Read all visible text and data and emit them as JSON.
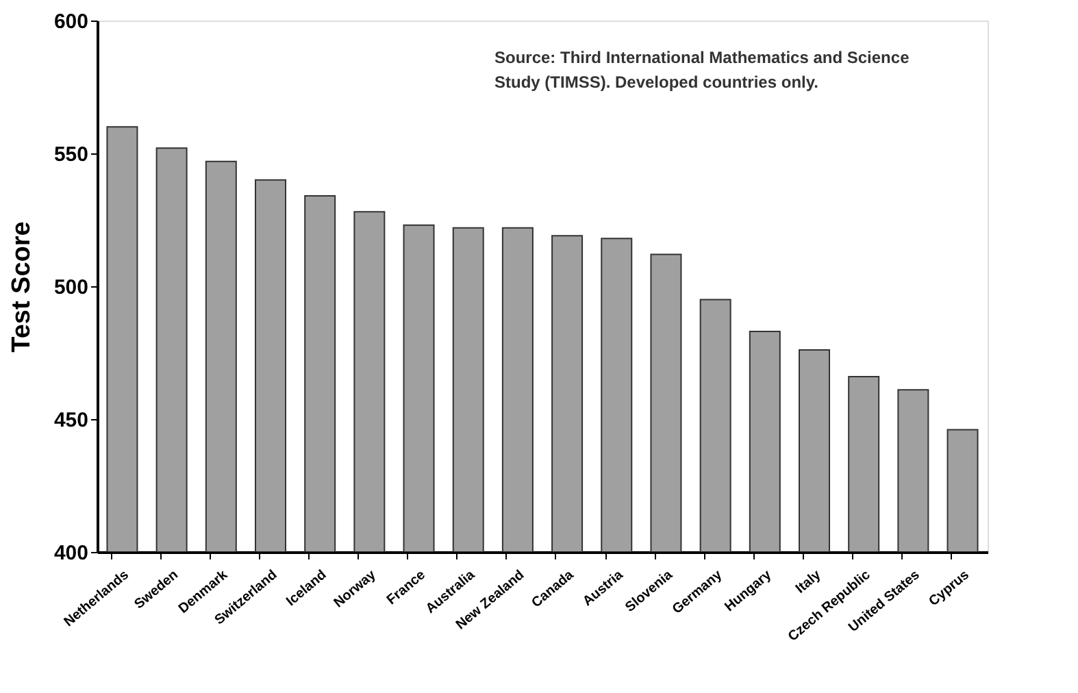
{
  "chart_data": {
    "type": "bar",
    "ylabel": "Test Score",
    "categories": [
      "Netherlands",
      "Sweden",
      "Denmark",
      "Switzerland",
      "Iceland",
      "Norway",
      "France",
      "Australia",
      "New Zealand",
      "Canada",
      "Austria",
      "Slovenia",
      "Germany",
      "Hungary",
      "Italy",
      "Czech Republic",
      "United States",
      "Cyprus"
    ],
    "values": [
      560,
      552,
      547,
      540,
      534,
      528,
      523,
      522,
      522,
      519,
      518,
      512,
      495,
      483,
      476,
      466,
      461,
      446
    ],
    "color": "#a0a0a0",
    "ylim": [
      400,
      600
    ],
    "yticks": [
      400,
      450,
      500,
      550,
      600
    ],
    "grid": false,
    "annotations": [
      "Source:  Third International Mathematics and Science\nStudy (TIMSS). Developed countries only."
    ]
  }
}
